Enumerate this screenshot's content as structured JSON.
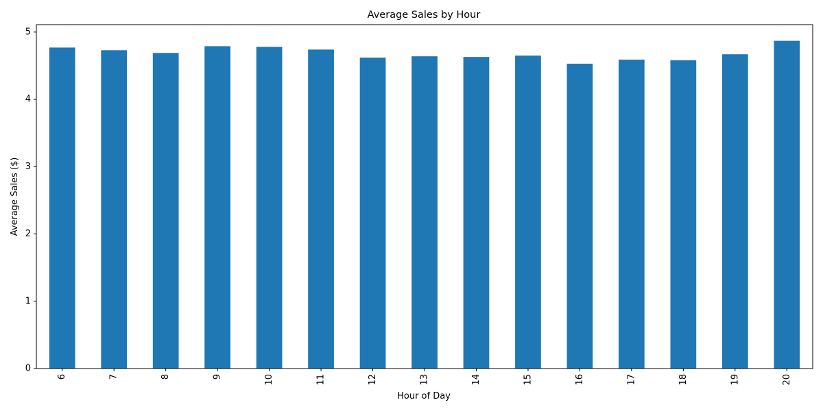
{
  "chart_data": {
    "type": "bar",
    "title": "Average Sales by Hour",
    "xlabel": "Hour of Day",
    "ylabel": "Average Sales ($)",
    "categories": [
      "6",
      "7",
      "8",
      "9",
      "10",
      "11",
      "12",
      "13",
      "14",
      "15",
      "16",
      "17",
      "18",
      "19",
      "20"
    ],
    "values": [
      4.77,
      4.73,
      4.69,
      4.79,
      4.78,
      4.74,
      4.62,
      4.64,
      4.63,
      4.65,
      4.53,
      4.59,
      4.58,
      4.67,
      4.87
    ],
    "ylim": [
      0,
      5.11
    ],
    "yticks": [
      0,
      1,
      2,
      3,
      4,
      5
    ],
    "xtick_rotation": "vertical",
    "grid": false,
    "legend": "none",
    "bar_color": "#1f77b4"
  }
}
